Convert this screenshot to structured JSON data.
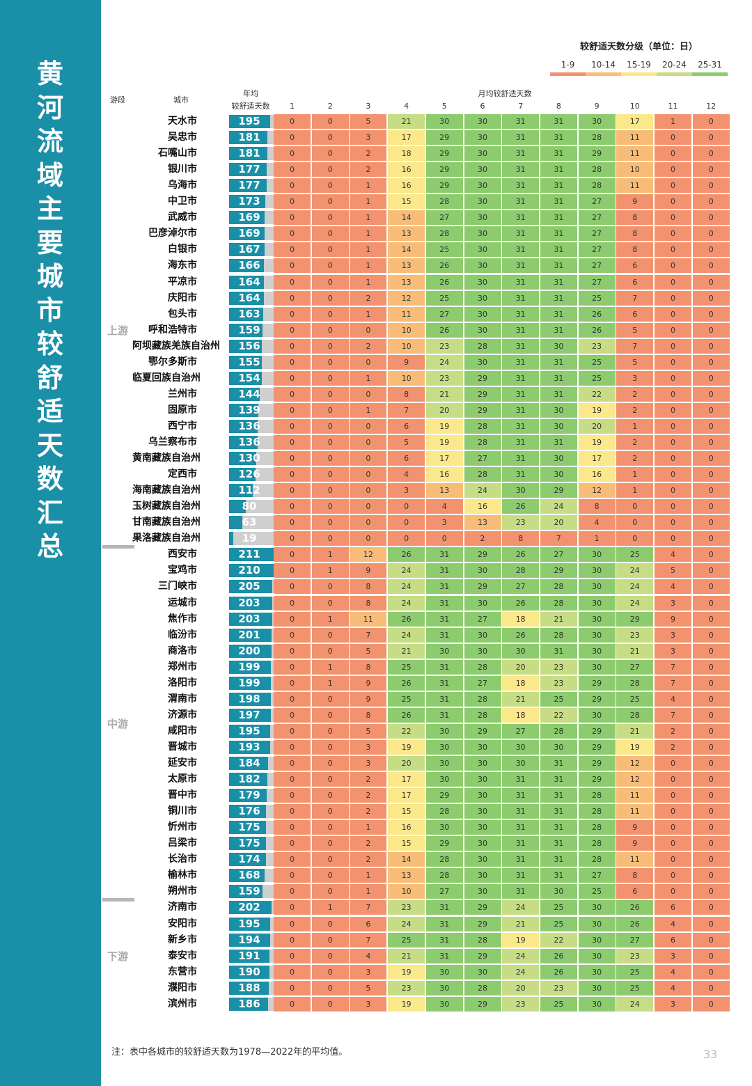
{
  "title": "黄河流域主要城市较舒适天数汇总",
  "legend": {
    "title": "较舒适天数分级（单位：日）",
    "classes": [
      {
        "label": "1-9",
        "color": "#f3926f"
      },
      {
        "label": "10-14",
        "color": "#f7bd78"
      },
      {
        "label": "15-19",
        "color": "#fbe88a"
      },
      {
        "label": "20-24",
        "color": "#c6dd86"
      },
      {
        "label": "25-31",
        "color": "#8ccb6e"
      }
    ]
  },
  "header": {
    "segment": "游段",
    "city": "城市",
    "annual_line1": "年均",
    "annual_line2": "较舒适天数",
    "monthly": "月均较舒适天数",
    "months": [
      "1",
      "2",
      "3",
      "4",
      "5",
      "6",
      "7",
      "8",
      "9",
      "10",
      "11",
      "12"
    ]
  },
  "segments": [
    {
      "name": "上游",
      "cities": [
        {
          "name": "天水市",
          "annual": 195,
          "m": [
            0,
            0,
            5,
            21,
            30,
            30,
            31,
            31,
            30,
            17,
            1,
            0
          ]
        },
        {
          "name": "吴忠市",
          "annual": 181,
          "m": [
            0,
            0,
            3,
            17,
            29,
            30,
            31,
            31,
            28,
            11,
            0,
            0
          ]
        },
        {
          "name": "石嘴山市",
          "annual": 181,
          "m": [
            0,
            0,
            2,
            18,
            29,
            30,
            31,
            31,
            29,
            11,
            0,
            0
          ]
        },
        {
          "name": "银川市",
          "annual": 177,
          "m": [
            0,
            0,
            2,
            16,
            29,
            30,
            31,
            31,
            28,
            10,
            0,
            0
          ]
        },
        {
          "name": "乌海市",
          "annual": 177,
          "m": [
            0,
            0,
            1,
            16,
            29,
            30,
            31,
            31,
            28,
            11,
            0,
            0
          ]
        },
        {
          "name": "中卫市",
          "annual": 173,
          "m": [
            0,
            0,
            1,
            15,
            28,
            30,
            31,
            31,
            27,
            9,
            0,
            0
          ]
        },
        {
          "name": "武威市",
          "annual": 169,
          "m": [
            0,
            0,
            1,
            14,
            27,
            30,
            31,
            31,
            27,
            8,
            0,
            0
          ]
        },
        {
          "name": "巴彦淖尔市",
          "annual": 169,
          "m": [
            0,
            0,
            1,
            13,
            28,
            30,
            31,
            31,
            27,
            8,
            0,
            0
          ]
        },
        {
          "name": "白银市",
          "annual": 167,
          "m": [
            0,
            0,
            1,
            14,
            25,
            30,
            31,
            31,
            27,
            8,
            0,
            0
          ]
        },
        {
          "name": "海东市",
          "annual": 166,
          "m": [
            0,
            0,
            1,
            13,
            26,
            30,
            31,
            31,
            27,
            6,
            0,
            0
          ]
        },
        {
          "name": "平凉市",
          "annual": 164,
          "m": [
            0,
            0,
            1,
            13,
            26,
            30,
            31,
            31,
            27,
            6,
            0,
            0
          ]
        },
        {
          "name": "庆阳市",
          "annual": 164,
          "m": [
            0,
            0,
            2,
            12,
            25,
            30,
            31,
            31,
            25,
            7,
            0,
            0
          ]
        },
        {
          "name": "包头市",
          "annual": 163,
          "m": [
            0,
            0,
            1,
            11,
            27,
            30,
            31,
            31,
            26,
            6,
            0,
            0
          ]
        },
        {
          "name": "呼和浩特市",
          "annual": 159,
          "m": [
            0,
            0,
            0,
            10,
            26,
            30,
            31,
            31,
            26,
            5,
            0,
            0
          ]
        },
        {
          "name": "阿坝藏族羌族自治州",
          "annual": 156,
          "m": [
            0,
            0,
            2,
            10,
            23,
            28,
            31,
            30,
            23,
            7,
            0,
            0
          ]
        },
        {
          "name": "鄂尔多斯市",
          "annual": 155,
          "m": [
            0,
            0,
            0,
            9,
            24,
            30,
            31,
            31,
            25,
            5,
            0,
            0
          ]
        },
        {
          "name": "临夏回族自治州",
          "annual": 154,
          "m": [
            0,
            0,
            1,
            10,
            23,
            29,
            31,
            31,
            25,
            3,
            0,
            0
          ]
        },
        {
          "name": "兰州市",
          "annual": 144,
          "m": [
            0,
            0,
            0,
            8,
            21,
            29,
            31,
            31,
            22,
            2,
            0,
            0
          ]
        },
        {
          "name": "固原市",
          "annual": 139,
          "m": [
            0,
            0,
            1,
            7,
            20,
            29,
            31,
            30,
            19,
            2,
            0,
            0
          ]
        },
        {
          "name": "西宁市",
          "annual": 136,
          "m": [
            0,
            0,
            0,
            6,
            19,
            28,
            31,
            30,
            20,
            1,
            0,
            0
          ]
        },
        {
          "name": "乌兰察布市",
          "annual": 136,
          "m": [
            0,
            0,
            0,
            5,
            19,
            28,
            31,
            31,
            19,
            2,
            0,
            0
          ]
        },
        {
          "name": "黄南藏族自治州",
          "annual": 130,
          "m": [
            0,
            0,
            0,
            6,
            17,
            27,
            31,
            30,
            17,
            2,
            0,
            0
          ]
        },
        {
          "name": "定西市",
          "annual": 126,
          "m": [
            0,
            0,
            0,
            4,
            16,
            28,
            31,
            30,
            16,
            1,
            0,
            0
          ]
        },
        {
          "name": "海南藏族自治州",
          "annual": 112,
          "m": [
            0,
            0,
            0,
            3,
            13,
            24,
            30,
            29,
            12,
            1,
            0,
            0
          ]
        },
        {
          "name": "玉树藏族自治州",
          "annual": 80,
          "m": [
            0,
            0,
            0,
            0,
            4,
            16,
            26,
            24,
            8,
            0,
            0,
            0
          ]
        },
        {
          "name": "甘南藏族自治州",
          "annual": 63,
          "m": [
            0,
            0,
            0,
            0,
            3,
            13,
            23,
            20,
            4,
            0,
            0,
            0
          ]
        },
        {
          "name": "果洛藏族自治州",
          "annual": 19,
          "m": [
            0,
            0,
            0,
            0,
            0,
            2,
            8,
            7,
            1,
            0,
            0,
            0
          ]
        }
      ]
    },
    {
      "name": "中游",
      "cities": [
        {
          "name": "西安市",
          "annual": 211,
          "m": [
            0,
            1,
            12,
            26,
            31,
            29,
            26,
            27,
            30,
            25,
            4,
            0
          ]
        },
        {
          "name": "宝鸡市",
          "annual": 210,
          "m": [
            0,
            1,
            9,
            24,
            31,
            30,
            28,
            29,
            30,
            24,
            5,
            0
          ]
        },
        {
          "name": "三门峡市",
          "annual": 205,
          "m": [
            0,
            0,
            8,
            24,
            31,
            29,
            27,
            28,
            30,
            24,
            4,
            0
          ]
        },
        {
          "name": "运城市",
          "annual": 203,
          "m": [
            0,
            0,
            8,
            24,
            31,
            30,
            26,
            28,
            30,
            24,
            3,
            0
          ]
        },
        {
          "name": "焦作市",
          "annual": 203,
          "m": [
            0,
            1,
            11,
            26,
            31,
            27,
            18,
            21,
            30,
            29,
            9,
            0
          ]
        },
        {
          "name": "临汾市",
          "annual": 201,
          "m": [
            0,
            0,
            7,
            24,
            31,
            30,
            26,
            28,
            30,
            23,
            3,
            0
          ]
        },
        {
          "name": "商洛市",
          "annual": 200,
          "m": [
            0,
            0,
            5,
            21,
            30,
            30,
            30,
            31,
            30,
            21,
            3,
            0
          ]
        },
        {
          "name": "郑州市",
          "annual": 199,
          "m": [
            0,
            1,
            8,
            25,
            31,
            28,
            20,
            23,
            30,
            27,
            7,
            0
          ]
        },
        {
          "name": "洛阳市",
          "annual": 199,
          "m": [
            0,
            1,
            9,
            26,
            31,
            27,
            18,
            23,
            29,
            28,
            7,
            0
          ]
        },
        {
          "name": "渭南市",
          "annual": 198,
          "m": [
            0,
            0,
            9,
            25,
            31,
            28,
            21,
            25,
            29,
            25,
            4,
            0
          ]
        },
        {
          "name": "济源市",
          "annual": 197,
          "m": [
            0,
            0,
            8,
            26,
            31,
            28,
            18,
            22,
            30,
            28,
            7,
            0
          ]
        },
        {
          "name": "咸阳市",
          "annual": 195,
          "m": [
            0,
            0,
            5,
            22,
            30,
            29,
            27,
            28,
            29,
            21,
            2,
            0
          ]
        },
        {
          "name": "晋城市",
          "annual": 193,
          "m": [
            0,
            0,
            3,
            19,
            30,
            30,
            30,
            30,
            29,
            19,
            2,
            0
          ]
        },
        {
          "name": "延安市",
          "annual": 184,
          "m": [
            0,
            0,
            3,
            20,
            30,
            30,
            30,
            31,
            29,
            12,
            0,
            0
          ]
        },
        {
          "name": "太原市",
          "annual": 182,
          "m": [
            0,
            0,
            2,
            17,
            30,
            30,
            31,
            31,
            29,
            12,
            0,
            0
          ]
        },
        {
          "name": "晋中市",
          "annual": 179,
          "m": [
            0,
            0,
            2,
            17,
            29,
            30,
            31,
            31,
            28,
            11,
            0,
            0
          ]
        },
        {
          "name": "铜川市",
          "annual": 176,
          "m": [
            0,
            0,
            2,
            15,
            28,
            30,
            31,
            31,
            28,
            11,
            0,
            0
          ]
        },
        {
          "name": "忻州市",
          "annual": 175,
          "m": [
            0,
            0,
            1,
            16,
            30,
            30,
            31,
            31,
            28,
            9,
            0,
            0
          ]
        },
        {
          "name": "吕梁市",
          "annual": 175,
          "m": [
            0,
            0,
            2,
            15,
            29,
            30,
            31,
            31,
            28,
            9,
            0,
            0
          ]
        },
        {
          "name": "长治市",
          "annual": 174,
          "m": [
            0,
            0,
            2,
            14,
            28,
            30,
            31,
            31,
            28,
            11,
            0,
            0
          ]
        },
        {
          "name": "榆林市",
          "annual": 168,
          "m": [
            0,
            0,
            1,
            13,
            28,
            30,
            31,
            31,
            27,
            8,
            0,
            0
          ]
        },
        {
          "name": "朔州市",
          "annual": 159,
          "m": [
            0,
            0,
            1,
            10,
            27,
            30,
            31,
            30,
            25,
            6,
            0,
            0
          ]
        }
      ]
    },
    {
      "name": "下游",
      "cities": [
        {
          "name": "济南市",
          "annual": 202,
          "m": [
            0,
            1,
            7,
            23,
            31,
            29,
            24,
            25,
            30,
            26,
            6,
            0
          ]
        },
        {
          "name": "安阳市",
          "annual": 195,
          "m": [
            0,
            0,
            6,
            24,
            31,
            29,
            21,
            25,
            30,
            26,
            4,
            0
          ]
        },
        {
          "name": "新乡市",
          "annual": 194,
          "m": [
            0,
            0,
            7,
            25,
            31,
            28,
            19,
            22,
            30,
            27,
            6,
            0
          ]
        },
        {
          "name": "泰安市",
          "annual": 191,
          "m": [
            0,
            0,
            4,
            21,
            31,
            29,
            24,
            26,
            30,
            23,
            3,
            0
          ]
        },
        {
          "name": "东营市",
          "annual": 190,
          "m": [
            0,
            0,
            3,
            19,
            30,
            30,
            24,
            26,
            30,
            25,
            4,
            0
          ]
        },
        {
          "name": "濮阳市",
          "annual": 188,
          "m": [
            0,
            0,
            5,
            23,
            30,
            28,
            20,
            23,
            30,
            25,
            4,
            0
          ]
        },
        {
          "name": "滨州市",
          "annual": 186,
          "m": [
            0,
            0,
            3,
            19,
            30,
            29,
            23,
            25,
            30,
            24,
            3,
            0
          ]
        }
      ]
    }
  ],
  "footnote": "注：表中各城市的较舒适天数为1978—2022年的平均值。",
  "page_number": "33"
}
